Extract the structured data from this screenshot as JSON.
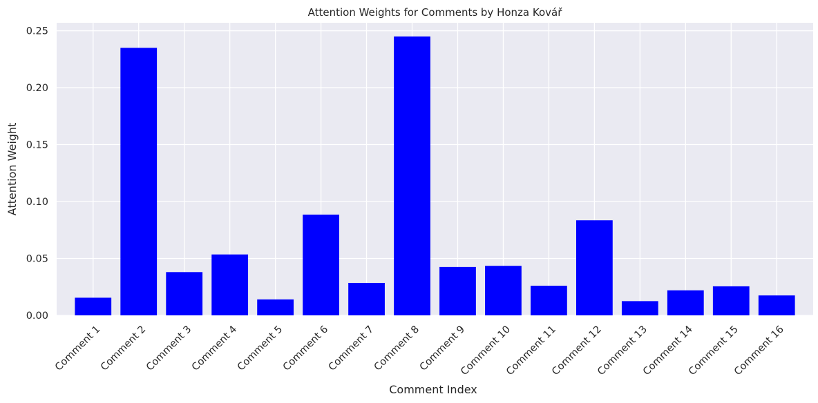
{
  "chart_data": {
    "type": "bar",
    "title": "Attention Weights for Comments by Honza Kovář",
    "xlabel": "Comment Index",
    "ylabel": "Attention Weight",
    "categories": [
      "Comment 1",
      "Comment 2",
      "Comment 3",
      "Comment 4",
      "Comment 5",
      "Comment 6",
      "Comment 7",
      "Comment 8",
      "Comment 9",
      "Comment 10",
      "Comment 11",
      "Comment 12",
      "Comment 13",
      "Comment 14",
      "Comment 15",
      "Comment 16"
    ],
    "values": [
      0.0155,
      0.235,
      0.038,
      0.0535,
      0.014,
      0.0885,
      0.0285,
      0.245,
      0.0425,
      0.0435,
      0.026,
      0.0835,
      0.0125,
      0.022,
      0.0255,
      0.0175
    ],
    "ylim": [
      0,
      0.257
    ],
    "yticks": [
      0.0,
      0.05,
      0.1,
      0.15,
      0.2,
      0.25
    ],
    "ytick_labels": [
      "0.00",
      "0.05",
      "0.10",
      "0.15",
      "0.20",
      "0.25"
    ],
    "grid": true,
    "bar_color": "#0000ff",
    "plot_background": "#eaeaf2",
    "grid_color": "#ffffff"
  }
}
